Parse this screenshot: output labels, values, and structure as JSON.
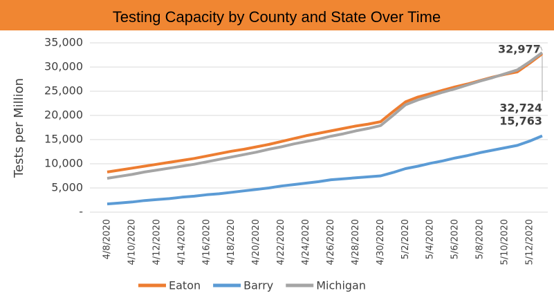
{
  "chart_data": {
    "type": "line",
    "title": "Testing Capacity by County and State Over Time",
    "y_label": "Tests per Million",
    "categories": [
      "4/8/2020",
      null,
      "4/10/2020",
      null,
      "4/12/2020",
      null,
      "4/14/2020",
      null,
      "4/16/2020",
      null,
      "4/18/2020",
      null,
      "4/20/2020",
      null,
      "4/22/2020",
      null,
      "4/24/2020",
      null,
      "4/26/2020",
      null,
      "4/28/2020",
      null,
      "4/30/2020",
      null,
      "5/2/2020",
      null,
      "5/4/2020",
      null,
      "5/6/2020",
      null,
      "5/8/2020",
      null,
      "5/10/2020",
      null,
      "5/12/2020",
      null
    ],
    "series": [
      {
        "name": "Eaton",
        "color": "#ED7D31",
        "values": [
          8300,
          8700,
          9100,
          9500,
          9900,
          10300,
          10700,
          11100,
          11600,
          12100,
          12600,
          13000,
          13500,
          14000,
          14600,
          15200,
          15800,
          16300,
          16800,
          17300,
          17800,
          18200,
          18700,
          20800,
          22800,
          23800,
          24500,
          25200,
          25900,
          26500,
          27200,
          27900,
          28500,
          29000,
          30800,
          32724
        ],
        "value_labels": [
          null,
          null,
          null,
          null,
          null,
          null,
          null,
          null,
          null,
          null,
          null,
          null,
          null,
          null,
          null,
          null,
          null,
          null,
          null,
          null,
          null,
          null,
          null,
          null,
          null,
          null,
          null,
          null,
          null,
          null,
          null,
          null,
          null,
          null,
          null,
          "32,724"
        ]
      },
      {
        "name": "Barry",
        "color": "#5B9BD5",
        "values": [
          1700,
          1900,
          2100,
          2400,
          2600,
          2800,
          3100,
          3300,
          3600,
          3800,
          4100,
          4400,
          4700,
          5000,
          5400,
          5700,
          6000,
          6300,
          6700,
          6900,
          7100,
          7300,
          7500,
          8200,
          9000,
          9500,
          10100,
          10600,
          11200,
          11700,
          12300,
          12800,
          13300,
          13800,
          14700,
          15763
        ],
        "value_labels": [
          null,
          null,
          null,
          null,
          null,
          null,
          null,
          null,
          null,
          null,
          null,
          null,
          null,
          null,
          null,
          null,
          null,
          null,
          null,
          null,
          null,
          null,
          null,
          null,
          null,
          null,
          null,
          null,
          null,
          null,
          null,
          null,
          null,
          null,
          null,
          "15,763"
        ]
      },
      {
        "name": "Michigan",
        "color": "#A5A5A5",
        "values": [
          7000,
          7400,
          7800,
          8300,
          8700,
          9100,
          9500,
          9900,
          10400,
          10900,
          11400,
          11900,
          12400,
          13000,
          13500,
          14100,
          14600,
          15100,
          15700,
          16200,
          16800,
          17300,
          17900,
          20000,
          22200,
          23200,
          24000,
          24800,
          25500,
          26300,
          27100,
          27800,
          28600,
          29400,
          31100,
          32977
        ],
        "value_labels": [
          null,
          null,
          null,
          null,
          null,
          null,
          null,
          null,
          null,
          null,
          null,
          null,
          null,
          null,
          null,
          null,
          null,
          null,
          null,
          null,
          null,
          null,
          null,
          null,
          null,
          null,
          null,
          null,
          null,
          null,
          null,
          null,
          null,
          null,
          null,
          "32,977"
        ]
      }
    ],
    "ylim": [
      0,
      35000
    ],
    "yticks": [
      {
        "value": 0,
        "label": "-"
      },
      {
        "value": 5000,
        "label": "5,000"
      },
      {
        "value": 10000,
        "label": "10,000"
      },
      {
        "value": 15000,
        "label": "15,000"
      },
      {
        "value": 20000,
        "label": "20,000"
      },
      {
        "value": 25000,
        "label": "25,000"
      },
      {
        "value": 30000,
        "label": "30,000"
      },
      {
        "value": 35000,
        "label": "35,000"
      }
    ],
    "grid": true,
    "legend": "bottom",
    "title_background": "#F08632"
  }
}
